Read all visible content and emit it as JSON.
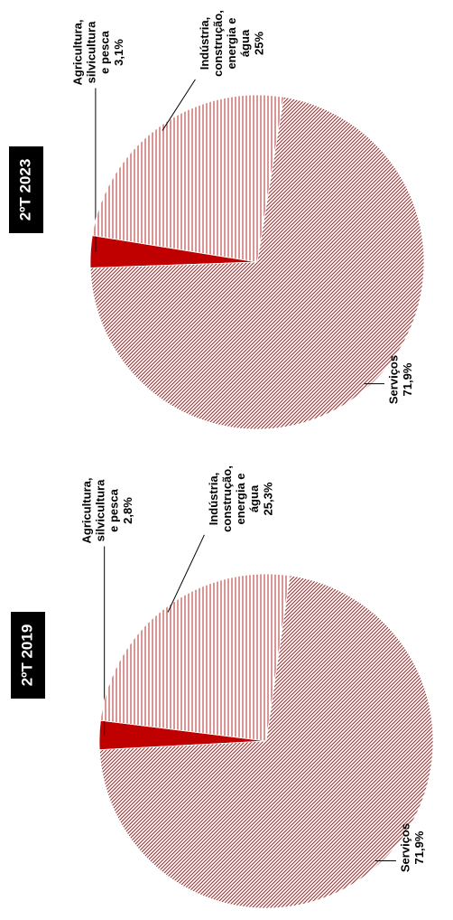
{
  "chart_data": [
    {
      "type": "pie",
      "title": "2ºT 2019",
      "categories": [
        "Agricultura, silvicultura e pesca",
        "Indústria, construção, energia e água",
        "Serviços"
      ],
      "values": [
        2.8,
        25.3,
        71.9
      ],
      "value_labels": [
        "2,8%",
        "25,3%",
        "71,9%"
      ],
      "colors": [
        "#c00000",
        "#c0504d",
        "#b22a2a"
      ],
      "patterns": [
        "solid",
        "vertical",
        "diagonal"
      ]
    },
    {
      "type": "pie",
      "title": "2ºT 2023",
      "categories": [
        "Agricultura, silvicultura e pesca",
        "Indústria, construção, energia e água",
        "Serviços"
      ],
      "values": [
        3.1,
        25,
        71.9
      ],
      "value_labels": [
        "3,1%",
        "25%",
        "71,9%"
      ],
      "colors": [
        "#c00000",
        "#c0504d",
        "#b22a2a"
      ],
      "patterns": [
        "solid",
        "vertical",
        "diagonal"
      ]
    }
  ]
}
